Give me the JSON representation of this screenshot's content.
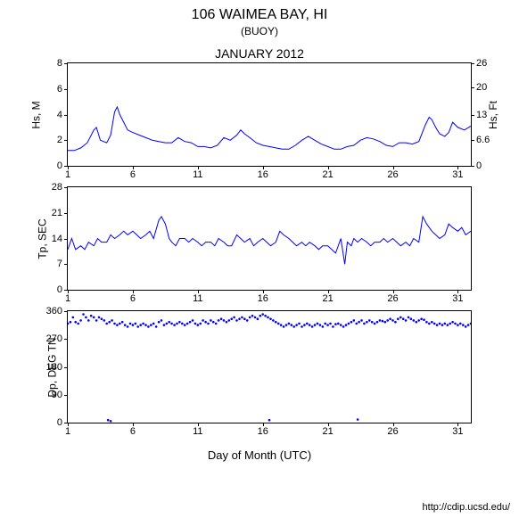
{
  "title": "106 WAIMEA BAY, HI",
  "subtitle": "(BUOY)",
  "period": "JANUARY 2012",
  "xlabel": "Day of Month (UTC)",
  "footer": "http://cdip.ucsd.edu/",
  "line_color": "#0000ff",
  "scatter_color": "#0000ff",
  "xlim": [
    1,
    32
  ],
  "xticks": [
    1,
    6,
    11,
    16,
    21,
    26,
    31
  ],
  "xtick_labels": [
    "1",
    "6",
    "11",
    "16",
    "21",
    "26",
    "31"
  ],
  "chart1": {
    "ylabel_left": "Hs, M",
    "ylabel_right": "Hs, Ft",
    "ylim": [
      0,
      8
    ],
    "yticks": [
      0,
      2,
      4,
      6,
      8
    ],
    "ytick_labels": [
      "0",
      "2",
      "4",
      "6",
      "8"
    ],
    "yticks_right": [
      0,
      6.6,
      13,
      20,
      26
    ],
    "ytick_labels_right": [
      "0",
      "6.6",
      "13",
      "20",
      "26"
    ],
    "height": 115,
    "type": "line",
    "data": [
      [
        1,
        1.2
      ],
      [
        1.5,
        1.2
      ],
      [
        2,
        1.4
      ],
      [
        2.5,
        1.8
      ],
      [
        3,
        2.8
      ],
      [
        3.2,
        3.0
      ],
      [
        3.5,
        2.0
      ],
      [
        4,
        1.8
      ],
      [
        4.3,
        2.4
      ],
      [
        4.6,
        4.2
      ],
      [
        4.8,
        4.6
      ],
      [
        5,
        4.0
      ],
      [
        5.3,
        3.4
      ],
      [
        5.6,
        2.8
      ],
      [
        6,
        2.6
      ],
      [
        6.5,
        2.4
      ],
      [
        7,
        2.2
      ],
      [
        7.5,
        2.0
      ],
      [
        8,
        1.9
      ],
      [
        8.5,
        1.8
      ],
      [
        9,
        1.8
      ],
      [
        9.5,
        2.2
      ],
      [
        10,
        1.9
      ],
      [
        10.5,
        1.8
      ],
      [
        11,
        1.5
      ],
      [
        11.5,
        1.5
      ],
      [
        12,
        1.4
      ],
      [
        12.5,
        1.6
      ],
      [
        13,
        2.2
      ],
      [
        13.5,
        2.0
      ],
      [
        14,
        2.4
      ],
      [
        14.3,
        2.8
      ],
      [
        14.6,
        2.5
      ],
      [
        15,
        2.2
      ],
      [
        15.5,
        1.8
      ],
      [
        16,
        1.6
      ],
      [
        16.5,
        1.5
      ],
      [
        17,
        1.4
      ],
      [
        17.5,
        1.3
      ],
      [
        18,
        1.3
      ],
      [
        18.5,
        1.6
      ],
      [
        19,
        2.0
      ],
      [
        19.5,
        2.3
      ],
      [
        20,
        2.0
      ],
      [
        20.5,
        1.7
      ],
      [
        21,
        1.5
      ],
      [
        21.5,
        1.3
      ],
      [
        22,
        1.3
      ],
      [
        22.5,
        1.5
      ],
      [
        23,
        1.6
      ],
      [
        23.5,
        2.0
      ],
      [
        24,
        2.2
      ],
      [
        24.5,
        2.1
      ],
      [
        25,
        1.9
      ],
      [
        25.5,
        1.6
      ],
      [
        26,
        1.5
      ],
      [
        26.5,
        1.8
      ],
      [
        27,
        1.8
      ],
      [
        27.5,
        1.7
      ],
      [
        28,
        1.9
      ],
      [
        28.5,
        3.2
      ],
      [
        28.8,
        3.8
      ],
      [
        29,
        3.6
      ],
      [
        29.3,
        3.0
      ],
      [
        29.6,
        2.5
      ],
      [
        30,
        2.3
      ],
      [
        30.3,
        2.6
      ],
      [
        30.6,
        3.4
      ],
      [
        31,
        3.0
      ],
      [
        31.5,
        2.8
      ],
      [
        32,
        3.1
      ]
    ]
  },
  "chart2": {
    "ylabel_left": "Tp, SEC",
    "ylim": [
      0,
      28
    ],
    "yticks": [
      0,
      7,
      14,
      21,
      28
    ],
    "ytick_labels": [
      "0",
      "7",
      "14",
      "21",
      "28"
    ],
    "height": 115,
    "type": "line",
    "data": [
      [
        1,
        11
      ],
      [
        1.3,
        14
      ],
      [
        1.6,
        11
      ],
      [
        2,
        12
      ],
      [
        2.3,
        11
      ],
      [
        2.6,
        13
      ],
      [
        3,
        12
      ],
      [
        3.3,
        14
      ],
      [
        3.6,
        13
      ],
      [
        4,
        13
      ],
      [
        4.3,
        15
      ],
      [
        4.6,
        14
      ],
      [
        5,
        15
      ],
      [
        5.3,
        16
      ],
      [
        5.6,
        15
      ],
      [
        6,
        16
      ],
      [
        6.3,
        15
      ],
      [
        6.6,
        14
      ],
      [
        7,
        15
      ],
      [
        7.3,
        16
      ],
      [
        7.6,
        14
      ],
      [
        8,
        19
      ],
      [
        8.2,
        20
      ],
      [
        8.5,
        18
      ],
      [
        8.8,
        14
      ],
      [
        9,
        13
      ],
      [
        9.3,
        12
      ],
      [
        9.6,
        14
      ],
      [
        10,
        14
      ],
      [
        10.3,
        13
      ],
      [
        10.6,
        14
      ],
      [
        11,
        13
      ],
      [
        11.3,
        12
      ],
      [
        11.6,
        13
      ],
      [
        12,
        13
      ],
      [
        12.3,
        12
      ],
      [
        12.6,
        14
      ],
      [
        13,
        13
      ],
      [
        13.3,
        12
      ],
      [
        13.6,
        12
      ],
      [
        14,
        15
      ],
      [
        14.3,
        14
      ],
      [
        14.6,
        13
      ],
      [
        15,
        14
      ],
      [
        15.3,
        12
      ],
      [
        15.6,
        13
      ],
      [
        16,
        14
      ],
      [
        16.3,
        13
      ],
      [
        16.6,
        12
      ],
      [
        17,
        13
      ],
      [
        17.3,
        16
      ],
      [
        17.6,
        15
      ],
      [
        18,
        14
      ],
      [
        18.3,
        13
      ],
      [
        18.6,
        12
      ],
      [
        19,
        13
      ],
      [
        19.3,
        12
      ],
      [
        19.6,
        13
      ],
      [
        20,
        12
      ],
      [
        20.3,
        11
      ],
      [
        20.6,
        12
      ],
      [
        21,
        12
      ],
      [
        21.3,
        11
      ],
      [
        21.6,
        10
      ],
      [
        22,
        14
      ],
      [
        22.3,
        7
      ],
      [
        22.5,
        13
      ],
      [
        22.8,
        12
      ],
      [
        23,
        14
      ],
      [
        23.3,
        13
      ],
      [
        23.6,
        14
      ],
      [
        24,
        13
      ],
      [
        24.3,
        12
      ],
      [
        24.6,
        13
      ],
      [
        25,
        13
      ],
      [
        25.3,
        14
      ],
      [
        25.6,
        13
      ],
      [
        26,
        14
      ],
      [
        26.3,
        13
      ],
      [
        26.6,
        12
      ],
      [
        27,
        13
      ],
      [
        27.3,
        12
      ],
      [
        27.6,
        14
      ],
      [
        28,
        13
      ],
      [
        28.3,
        20
      ],
      [
        28.6,
        18
      ],
      [
        29,
        16
      ],
      [
        29.3,
        15
      ],
      [
        29.6,
        14
      ],
      [
        30,
        15
      ],
      [
        30.3,
        18
      ],
      [
        30.6,
        17
      ],
      [
        31,
        16
      ],
      [
        31.3,
        17
      ],
      [
        31.6,
        15
      ],
      [
        32,
        16
      ]
    ]
  },
  "chart3": {
    "ylabel_left": "Dp, DEG TN",
    "ylim": [
      0,
      360
    ],
    "yticks": [
      0,
      90,
      180,
      270,
      360
    ],
    "ytick_labels": [
      "0",
      "90",
      "180",
      "270",
      "360"
    ],
    "height": 125,
    "type": "scatter",
    "data": [
      [
        1,
        320
      ],
      [
        1.2,
        325
      ],
      [
        1.4,
        340
      ],
      [
        1.6,
        325
      ],
      [
        1.8,
        320
      ],
      [
        2,
        330
      ],
      [
        2.2,
        350
      ],
      [
        2.4,
        340
      ],
      [
        2.6,
        330
      ],
      [
        2.8,
        345
      ],
      [
        3,
        340
      ],
      [
        3.2,
        330
      ],
      [
        3.4,
        340
      ],
      [
        3.6,
        335
      ],
      [
        3.8,
        330
      ],
      [
        4,
        320
      ],
      [
        4.1,
        8
      ],
      [
        4.2,
        325
      ],
      [
        4.3,
        5
      ],
      [
        4.4,
        330
      ],
      [
        4.6,
        320
      ],
      [
        4.8,
        315
      ],
      [
        5,
        320
      ],
      [
        5.2,
        325
      ],
      [
        5.4,
        315
      ],
      [
        5.6,
        310
      ],
      [
        5.8,
        320
      ],
      [
        6,
        315
      ],
      [
        6.2,
        320
      ],
      [
        6.4,
        310
      ],
      [
        6.6,
        315
      ],
      [
        6.8,
        320
      ],
      [
        7,
        315
      ],
      [
        7.2,
        310
      ],
      [
        7.4,
        315
      ],
      [
        7.6,
        320
      ],
      [
        7.8,
        310
      ],
      [
        8,
        325
      ],
      [
        8.2,
        330
      ],
      [
        8.4,
        315
      ],
      [
        8.6,
        320
      ],
      [
        8.8,
        325
      ],
      [
        9,
        320
      ],
      [
        9.2,
        315
      ],
      [
        9.4,
        320
      ],
      [
        9.6,
        325
      ],
      [
        9.8,
        320
      ],
      [
        10,
        315
      ],
      [
        10.2,
        320
      ],
      [
        10.4,
        325
      ],
      [
        10.6,
        330
      ],
      [
        10.8,
        320
      ],
      [
        11,
        315
      ],
      [
        11.2,
        320
      ],
      [
        11.4,
        330
      ],
      [
        11.6,
        325
      ],
      [
        11.8,
        320
      ],
      [
        12,
        330
      ],
      [
        12.2,
        325
      ],
      [
        12.4,
        320
      ],
      [
        12.6,
        330
      ],
      [
        12.8,
        335
      ],
      [
        13,
        330
      ],
      [
        13.2,
        325
      ],
      [
        13.4,
        330
      ],
      [
        13.6,
        335
      ],
      [
        13.8,
        340
      ],
      [
        14,
        330
      ],
      [
        14.2,
        335
      ],
      [
        14.4,
        340
      ],
      [
        14.6,
        335
      ],
      [
        14.8,
        330
      ],
      [
        15,
        340
      ],
      [
        15.2,
        345
      ],
      [
        15.4,
        340
      ],
      [
        15.6,
        335
      ],
      [
        15.8,
        345
      ],
      [
        16,
        350
      ],
      [
        16.2,
        345
      ],
      [
        16.4,
        340
      ],
      [
        16.5,
        8
      ],
      [
        16.6,
        335
      ],
      [
        16.8,
        330
      ],
      [
        17,
        325
      ],
      [
        17.2,
        320
      ],
      [
        17.4,
        315
      ],
      [
        17.6,
        310
      ],
      [
        17.8,
        315
      ],
      [
        18,
        320
      ],
      [
        18.2,
        315
      ],
      [
        18.4,
        310
      ],
      [
        18.6,
        315
      ],
      [
        18.8,
        320
      ],
      [
        19,
        310
      ],
      [
        19.2,
        315
      ],
      [
        19.4,
        320
      ],
      [
        19.6,
        315
      ],
      [
        19.8,
        310
      ],
      [
        20,
        315
      ],
      [
        20.2,
        320
      ],
      [
        20.4,
        315
      ],
      [
        20.6,
        310
      ],
      [
        20.8,
        320
      ],
      [
        21,
        315
      ],
      [
        21.2,
        320
      ],
      [
        21.4,
        310
      ],
      [
        21.6,
        318
      ],
      [
        21.8,
        320
      ],
      [
        22,
        315
      ],
      [
        22.2,
        310
      ],
      [
        22.4,
        315
      ],
      [
        22.6,
        320
      ],
      [
        22.8,
        325
      ],
      [
        23,
        330
      ],
      [
        23.2,
        320
      ],
      [
        23.3,
        10
      ],
      [
        23.4,
        325
      ],
      [
        23.6,
        330
      ],
      [
        23.8,
        320
      ],
      [
        24,
        325
      ],
      [
        24.2,
        330
      ],
      [
        24.4,
        325
      ],
      [
        24.6,
        320
      ],
      [
        24.8,
        325
      ],
      [
        25,
        330
      ],
      [
        25.2,
        328
      ],
      [
        25.4,
        325
      ],
      [
        25.6,
        330
      ],
      [
        25.8,
        335
      ],
      [
        26,
        330
      ],
      [
        26.2,
        325
      ],
      [
        26.4,
        335
      ],
      [
        26.6,
        340
      ],
      [
        26.8,
        335
      ],
      [
        27,
        330
      ],
      [
        27.2,
        340
      ],
      [
        27.4,
        335
      ],
      [
        27.6,
        330
      ],
      [
        27.8,
        325
      ],
      [
        28,
        330
      ],
      [
        28.2,
        335
      ],
      [
        28.4,
        332
      ],
      [
        28.6,
        325
      ],
      [
        28.8,
        320
      ],
      [
        29,
        325
      ],
      [
        29.2,
        320
      ],
      [
        29.4,
        315
      ],
      [
        29.6,
        320
      ],
      [
        29.8,
        315
      ],
      [
        30,
        320
      ],
      [
        30.2,
        315
      ],
      [
        30.4,
        320
      ],
      [
        30.6,
        325
      ],
      [
        30.8,
        320
      ],
      [
        31,
        315
      ],
      [
        31.2,
        320
      ],
      [
        31.4,
        315
      ],
      [
        31.6,
        310
      ],
      [
        31.8,
        315
      ],
      [
        32,
        320
      ]
    ]
  }
}
